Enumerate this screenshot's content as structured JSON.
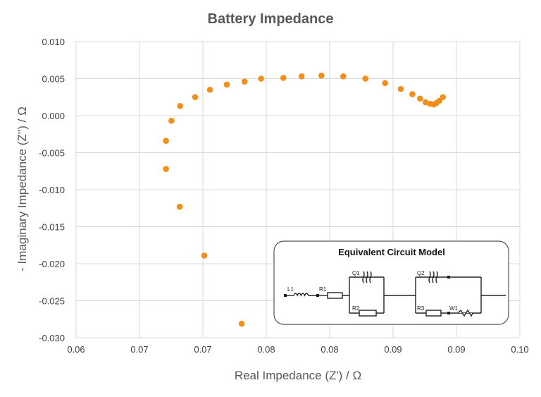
{
  "chart_data": {
    "type": "scatter",
    "title": "Battery Impedance",
    "xlabel": "Real Impedance (Z') / Ω",
    "ylabel": "- Imaginary Impedance (Z'') / Ω",
    "xlim": [
      0.06,
      0.095
    ],
    "ylim": [
      -0.03,
      0.01
    ],
    "x_tick_labels": [
      "0.06",
      "0.07",
      "0.07",
      "0.08",
      "0.08",
      "0.09",
      "0.09",
      "0.10"
    ],
    "y_tick_labels": [
      "0.010",
      "0.005",
      "0.000",
      "-0.005",
      "-0.010",
      "-0.015",
      "-0.020",
      "-0.025",
      "-0.030"
    ],
    "grid": true,
    "marker_color": "#F28E1C",
    "points": [
      [
        0.07306,
        -0.0281
      ],
      [
        0.07011,
        -0.0189
      ],
      [
        0.06817,
        -0.0123
      ],
      [
        0.06709,
        -0.0072
      ],
      [
        0.06709,
        -0.0034
      ],
      [
        0.06752,
        -0.0007
      ],
      [
        0.06821,
        0.0013
      ],
      [
        0.06939,
        0.0025
      ],
      [
        0.07056,
        0.0035
      ],
      [
        0.07189,
        0.0042
      ],
      [
        0.07329,
        0.0046
      ],
      [
        0.07459,
        0.005
      ],
      [
        0.07635,
        0.0051
      ],
      [
        0.07779,
        0.0053
      ],
      [
        0.07935,
        0.0054
      ],
      [
        0.08107,
        0.0053
      ],
      [
        0.08282,
        0.005
      ],
      [
        0.08437,
        0.0044
      ],
      [
        0.08561,
        0.0036
      ],
      [
        0.08652,
        0.0029
      ],
      [
        0.08713,
        0.0023
      ],
      [
        0.08757,
        0.0018
      ],
      [
        0.08793,
        0.0016
      ],
      [
        0.08822,
        0.0015
      ],
      [
        0.08841,
        0.0017
      ],
      [
        0.08865,
        0.002
      ],
      [
        0.08893,
        0.0025
      ]
    ]
  },
  "inset": {
    "title": "Equivalent Circuit Model",
    "labels": {
      "L1": "L1",
      "R1": "R1",
      "Q1": "Q1",
      "R2": "R2",
      "Q2": "Q2",
      "R3": "R3",
      "W1": "W1"
    }
  }
}
